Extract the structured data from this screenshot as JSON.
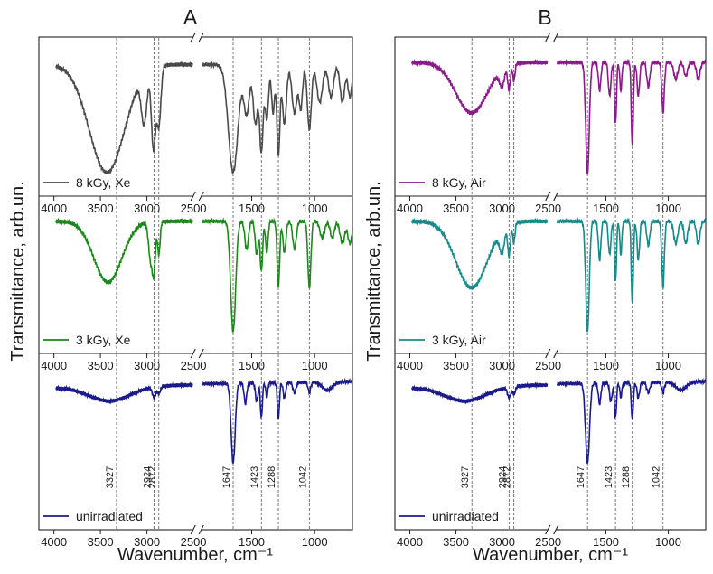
{
  "figure": {
    "ylabel": "Transmittance, arb.un.",
    "xlabel": "Wavenumber, cm⁻¹"
  },
  "chart_data": [
    {
      "type": "line",
      "panel_label": "A",
      "xlabel": "Wavenumber, cm⁻¹",
      "ylabel": "Transmittance, arb.un.",
      "x_axis": "reversed, broken between 2500 and 1900",
      "xlim_left_segment": [
        4000,
        2500
      ],
      "xlim_right_segment": [
        1900,
        700
      ],
      "x_ticks": [
        4000,
        3500,
        3000,
        2500,
        1500,
        1000
      ],
      "reference_lines": [
        3327,
        2924,
        2872,
        1647,
        1423,
        1288,
        1042
      ],
      "peak_labels": [
        "3327",
        "2924",
        "2872",
        "1647",
        "1423",
        "1288",
        "1042"
      ],
      "subplots": [
        {
          "legend": "8 kGy, Xe",
          "color": "#4a4a4a"
        },
        {
          "legend": "3 kGy, Xe",
          "color": "#1b8a1b"
        },
        {
          "legend": "unirradiated",
          "color": "#1a1a8c"
        }
      ]
    },
    {
      "type": "line",
      "panel_label": "B",
      "xlabel": "Wavenumber, cm⁻¹",
      "ylabel": "Transmittance, arb.un.",
      "x_axis": "reversed, broken between 2500 and 1900",
      "xlim_left_segment": [
        4000,
        2500
      ],
      "xlim_right_segment": [
        1900,
        700
      ],
      "x_ticks": [
        4000,
        3500,
        3000,
        2500,
        1500,
        1000
      ],
      "reference_lines": [
        3327,
        2924,
        2872,
        1647,
        1423,
        1288,
        1042
      ],
      "peak_labels": [
        "3327",
        "2924",
        "2872",
        "1647",
        "1423",
        "1288",
        "1042"
      ],
      "subplots": [
        {
          "legend": "8 kGy, Air",
          "color": "#8b1a8b"
        },
        {
          "legend": "3 kGy, Air",
          "color": "#178a8a"
        },
        {
          "legend": "unirradiated",
          "color": "#1a1a8c"
        }
      ]
    }
  ]
}
